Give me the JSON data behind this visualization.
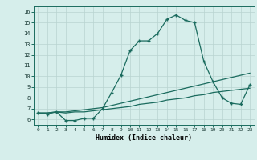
{
  "xlabel": "Humidex (Indice chaleur)",
  "ylabel": "",
  "bg_color": "#d6eeeb",
  "grid_color": "#b8d4d0",
  "line_color": "#1a6b5e",
  "line1_x": [
    0,
    1,
    2,
    3,
    4,
    5,
    6,
    7,
    8,
    9,
    10,
    11,
    12,
    13,
    14,
    15,
    16,
    17,
    18,
    19,
    20,
    21,
    22,
    23
  ],
  "line1_y": [
    6.6,
    6.5,
    6.7,
    5.9,
    5.9,
    6.1,
    6.1,
    7.0,
    8.5,
    10.1,
    12.4,
    13.3,
    13.3,
    14.0,
    15.3,
    15.7,
    15.2,
    15.0,
    11.4,
    9.5,
    8.0,
    7.5,
    7.4,
    9.2
  ],
  "line2_x": [
    0,
    1,
    2,
    3,
    4,
    5,
    6,
    7,
    8,
    9,
    10,
    11,
    12,
    13,
    14,
    15,
    16,
    17,
    18,
    19,
    20,
    21,
    22,
    23
  ],
  "line2_y": [
    6.6,
    6.6,
    6.7,
    6.7,
    6.8,
    6.9,
    7.0,
    7.1,
    7.3,
    7.5,
    7.7,
    7.9,
    8.1,
    8.3,
    8.5,
    8.7,
    8.9,
    9.1,
    9.3,
    9.5,
    9.7,
    9.9,
    10.1,
    10.3
  ],
  "line3_x": [
    0,
    1,
    2,
    3,
    4,
    5,
    6,
    7,
    8,
    9,
    10,
    11,
    12,
    13,
    14,
    15,
    16,
    17,
    18,
    19,
    20,
    21,
    22,
    23
  ],
  "line3_y": [
    6.6,
    6.6,
    6.7,
    6.6,
    6.7,
    6.7,
    6.8,
    6.9,
    7.0,
    7.1,
    7.2,
    7.4,
    7.5,
    7.6,
    7.8,
    7.9,
    8.0,
    8.2,
    8.3,
    8.5,
    8.6,
    8.7,
    8.8,
    8.9
  ],
  "ylim": [
    5.5,
    16.5
  ],
  "xlim": [
    -0.5,
    23.5
  ],
  "yticks": [
    6,
    7,
    8,
    9,
    10,
    11,
    12,
    13,
    14,
    15,
    16
  ],
  "xticks": [
    0,
    1,
    2,
    3,
    4,
    5,
    6,
    7,
    8,
    9,
    10,
    11,
    12,
    13,
    14,
    15,
    16,
    17,
    18,
    19,
    20,
    21,
    22,
    23
  ],
  "xtick_labels": [
    "0",
    "1",
    "2",
    "3",
    "4",
    "5",
    "6",
    "7",
    "8",
    "9",
    "10",
    "11",
    "12",
    "13",
    "14",
    "15",
    "16",
    "17",
    "18",
    "19",
    "20",
    "21",
    "22",
    "23"
  ]
}
